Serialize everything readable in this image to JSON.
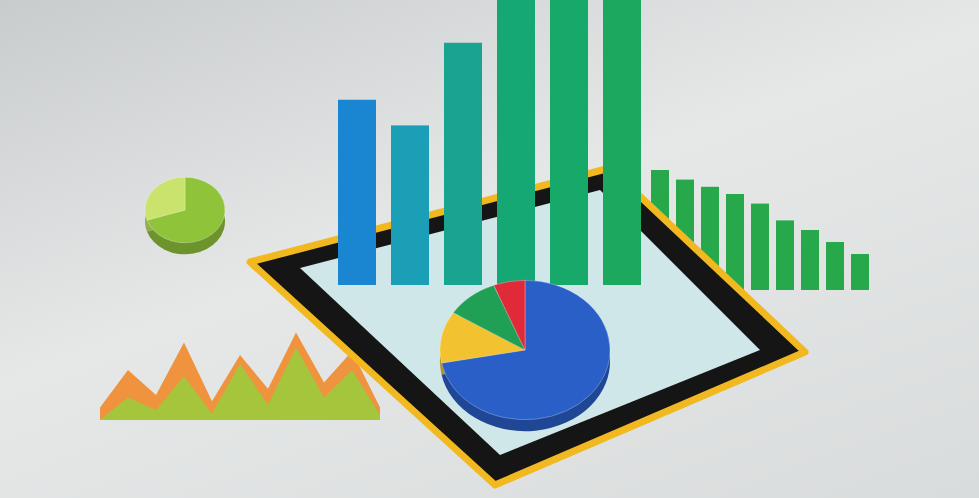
{
  "chart_data": [
    {
      "type": "pie",
      "values": [
        70,
        30
      ],
      "colors": [
        "#8fc33a",
        "#c9e36c"
      ]
    },
    {
      "type": "area",
      "categories": [
        null,
        null,
        null,
        null,
        null,
        null,
        null,
        null,
        null,
        null,
        null
      ],
      "series": [
        {
          "color": "#f08a2c",
          "values": [
            10,
            40,
            20,
            62,
            15,
            52,
            25,
            70,
            30,
            55,
            10
          ]
        },
        {
          "color": "#9ccc3c",
          "values": [
            0,
            18,
            8,
            35,
            5,
            45,
            12,
            58,
            18,
            40,
            4
          ]
        }
      ],
      "ylim": [
        0,
        80
      ],
      "tick_labels": false
    },
    {
      "type": "bar",
      "categories": [
        null,
        null,
        null,
        null,
        null,
        null,
        null,
        null,
        null
      ],
      "values": [
        100,
        92,
        86,
        80,
        72,
        58,
        50,
        40,
        30
      ],
      "color": "#27a84a",
      "ylim": [
        0,
        100
      ],
      "tick_labels": false
    },
    {
      "type": "bar",
      "categories": [
        null,
        null,
        null,
        null,
        null,
        null
      ],
      "values": [
        65,
        56,
        85,
        100,
        100,
        100
      ],
      "colors": [
        "#1a86d2",
        "#1a9fb6",
        "#18a48e",
        "#16a874",
        "#17a96a",
        "#1ca85e"
      ],
      "ylim": [
        0,
        100
      ],
      "tick_labels": false
    },
    {
      "type": "pie",
      "values": [
        72,
        12,
        10,
        6
      ],
      "colors": [
        "#2a5fc8",
        "#f2c230",
        "#1fa055",
        "#e02a3a"
      ]
    }
  ]
}
